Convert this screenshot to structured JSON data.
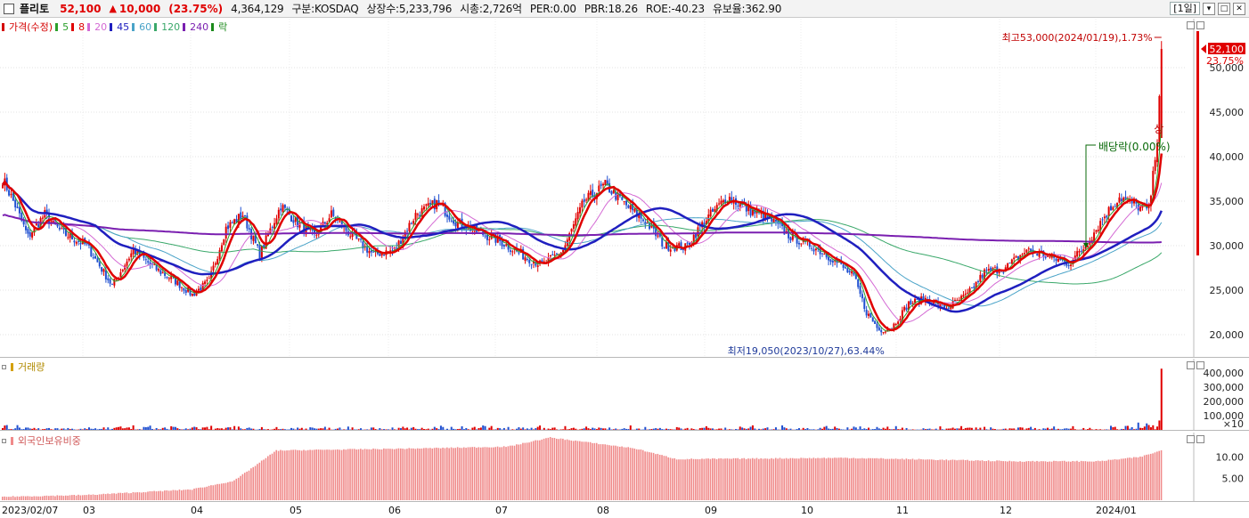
{
  "header": {
    "stock_name": "플리토",
    "price": "52,100",
    "change_arrow": "▲",
    "change": "10,000",
    "change_pct": "(23.75%)",
    "volume": "4,364,129",
    "market": "구분:KOSDAQ",
    "listed_shares": "상장수:5,233,796",
    "market_cap": "시총:2,726억",
    "per": "PER:0.00",
    "pbr": "PBR:18.26",
    "roe": "ROE:-40.23",
    "float_ratio": "유보율:362.90",
    "period": "[1일]",
    "window_buttons": [
      "▾",
      "□",
      "✕"
    ]
  },
  "price_pane": {
    "legend": [
      {
        "label": "가격(수정)",
        "color": "#d40000"
      },
      {
        "label": "5",
        "color": "#2ca02c"
      },
      {
        "label": "8",
        "color": "#e00000"
      },
      {
        "label": "20",
        "color": "#d46ad4"
      },
      {
        "label": "45",
        "color": "#1f1fbf"
      },
      {
        "label": "60",
        "color": "#4aa3c8"
      },
      {
        "label": "120",
        "color": "#3aa86a"
      },
      {
        "label": "240",
        "color": "#7a1fb0"
      },
      {
        "label": "락",
        "color": "#1a8a1a"
      }
    ],
    "y_ticks": [
      "50,000",
      "45,000",
      "40,000",
      "35,000",
      "30,000",
      "25,000",
      "20,000"
    ],
    "current_price_label": "52,100",
    "current_pct_label": "23.75%",
    "high_annotation": "최고53,000(2024/01/19),1.73%",
    "low_annotation": "최저19,050(2023/10/27),63.44%",
    "dividend_annotation": "배당락(0.00%)",
    "limit_up_label": "상"
  },
  "volume_pane": {
    "legend": "거래량",
    "y_ticks": [
      "400,000",
      "300,000",
      "200,000",
      "100,000"
    ],
    "unit": "×10"
  },
  "foreign_pane": {
    "legend": "외국인보유비중",
    "y_ticks": [
      "10.00",
      "5.00"
    ]
  },
  "x_axis": [
    "2023/02/07",
    "03",
    "04",
    "05",
    "06",
    "07",
    "08",
    "09",
    "10",
    "11",
    "12",
    "2024/01"
  ],
  "colors": {
    "up": "#e00000",
    "down": "#1f4fd0",
    "ma5": "#2ca02c",
    "ma8": "#e00000",
    "ma20": "#d46ad4",
    "ma45": "#1f1fbf",
    "ma60": "#4aa3c8",
    "ma120": "#3aa86a",
    "ma240": "#7a1fb0",
    "foreign_bar": "#f08a8a"
  },
  "chart_data": {
    "type": "candlestick",
    "y_range": [
      18000,
      55000
    ],
    "anchors": [
      [
        0,
        37500
      ],
      [
        6,
        34500
      ],
      [
        12,
        31000
      ],
      [
        20,
        33500
      ],
      [
        28,
        31500
      ],
      [
        40,
        30000
      ],
      [
        52,
        25500
      ],
      [
        62,
        29500
      ],
      [
        72,
        27500
      ],
      [
        82,
        26000
      ],
      [
        90,
        24500
      ],
      [
        98,
        26000
      ],
      [
        106,
        32000
      ],
      [
        114,
        33500
      ],
      [
        122,
        29000
      ],
      [
        132,
        34500
      ],
      [
        140,
        32500
      ],
      [
        148,
        31000
      ],
      [
        156,
        33500
      ],
      [
        166,
        31000
      ],
      [
        176,
        29000
      ],
      [
        186,
        29500
      ],
      [
        196,
        33500
      ],
      [
        206,
        34800
      ],
      [
        216,
        32500
      ],
      [
        226,
        31500
      ],
      [
        236,
        30500
      ],
      [
        246,
        29000
      ],
      [
        256,
        27800
      ],
      [
        266,
        29500
      ],
      [
        276,
        35000
      ],
      [
        286,
        36800
      ],
      [
        296,
        34500
      ],
      [
        306,
        32500
      ],
      [
        314,
        30000
      ],
      [
        324,
        29800
      ],
      [
        334,
        33000
      ],
      [
        344,
        35500
      ],
      [
        354,
        34000
      ],
      [
        364,
        33000
      ],
      [
        374,
        31000
      ],
      [
        384,
        30000
      ],
      [
        394,
        28500
      ],
      [
        404,
        26500
      ],
      [
        410,
        22500
      ],
      [
        416,
        20500
      ],
      [
        422,
        20800
      ],
      [
        430,
        23500
      ],
      [
        438,
        24000
      ],
      [
        448,
        23000
      ],
      [
        458,
        24500
      ],
      [
        466,
        27000
      ],
      [
        476,
        27500
      ],
      [
        486,
        29500
      ],
      [
        496,
        28800
      ],
      [
        506,
        28000
      ],
      [
        514,
        30000
      ],
      [
        522,
        33000
      ],
      [
        530,
        35500
      ],
      [
        538,
        34500
      ],
      [
        544,
        34000
      ],
      [
        548,
        41500
      ],
      [
        550,
        52100
      ]
    ],
    "volume_spike": 430000,
    "volume_typical_max": 60000,
    "foreign_ratio_anchors": [
      [
        0,
        0.8
      ],
      [
        40,
        1.2
      ],
      [
        90,
        2.5
      ],
      [
        110,
        4.5
      ],
      [
        130,
        11.5
      ],
      [
        200,
        12.0
      ],
      [
        240,
        12.4
      ],
      [
        260,
        14.5
      ],
      [
        300,
        12.0
      ],
      [
        320,
        9.5
      ],
      [
        400,
        9.8
      ],
      [
        430,
        9.5
      ],
      [
        480,
        9.0
      ],
      [
        520,
        9.0
      ],
      [
        540,
        10.0
      ],
      [
        550,
        11.5
      ]
    ]
  }
}
